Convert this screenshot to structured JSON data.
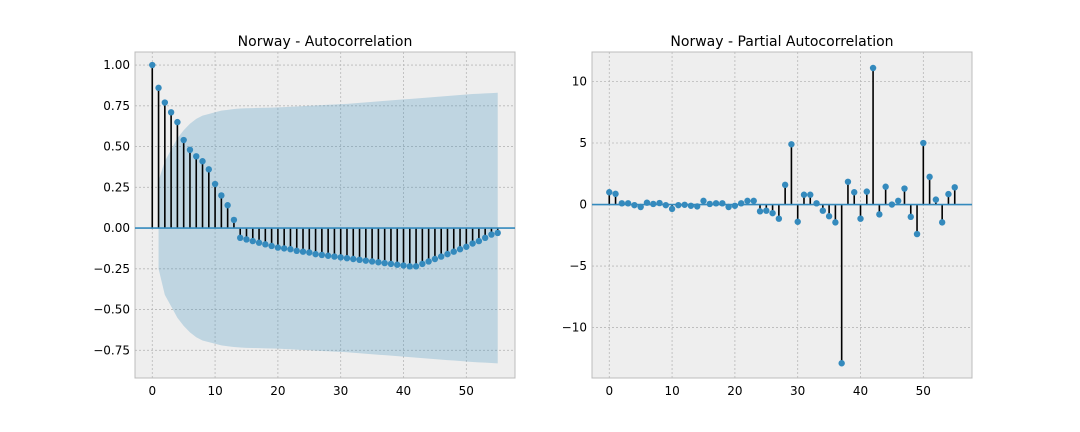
{
  "chart_data": [
    {
      "type": "stem",
      "title": "Norway - Autocorrelation",
      "xlim": [
        -2.75,
        57.75
      ],
      "ylim": [
        -0.92,
        1.08
      ],
      "xticks": [
        0,
        10,
        20,
        30,
        40,
        50
      ],
      "xtick_labels": [
        "0",
        "10",
        "20",
        "30",
        "40",
        "50"
      ],
      "yticks": [
        -0.75,
        -0.5,
        -0.25,
        0.0,
        0.25,
        0.5,
        0.75,
        1.0
      ],
      "ytick_labels": [
        "−0.75",
        "−0.50",
        "−0.25",
        "0.00",
        "0.25",
        "0.50",
        "0.75",
        "1.00"
      ],
      "grid": true,
      "lags": [
        0,
        1,
        2,
        3,
        4,
        5,
        6,
        7,
        8,
        9,
        10,
        11,
        12,
        13,
        14,
        15,
        16,
        17,
        18,
        19,
        20,
        21,
        22,
        23,
        24,
        25,
        26,
        27,
        28,
        29,
        30,
        31,
        32,
        33,
        34,
        35,
        36,
        37,
        38,
        39,
        40,
        41,
        42,
        43,
        44,
        45,
        46,
        47,
        48,
        49,
        50,
        51,
        52,
        53,
        54,
        55
      ],
      "values": [
        1.0,
        0.86,
        0.77,
        0.71,
        0.65,
        0.54,
        0.48,
        0.44,
        0.41,
        0.36,
        0.27,
        0.2,
        0.14,
        0.05,
        -0.06,
        -0.07,
        -0.08,
        -0.09,
        -0.1,
        -0.11,
        -0.12,
        -0.125,
        -0.13,
        -0.14,
        -0.145,
        -0.15,
        -0.16,
        -0.165,
        -0.17,
        -0.175,
        -0.18,
        -0.185,
        -0.19,
        -0.195,
        -0.2,
        -0.205,
        -0.21,
        -0.215,
        -0.22,
        -0.225,
        -0.23,
        -0.235,
        -0.235,
        -0.22,
        -0.205,
        -0.19,
        -0.175,
        -0.16,
        -0.145,
        -0.13,
        -0.115,
        -0.095,
        -0.08,
        -0.06,
        -0.04,
        -0.03
      ],
      "confint_upper": [
        null,
        0.29,
        0.41,
        0.48,
        0.55,
        0.6,
        0.64,
        0.67,
        0.69,
        0.7,
        0.71,
        0.72,
        0.725,
        0.73,
        0.733,
        0.735,
        0.736,
        0.737,
        0.738,
        0.739,
        0.74,
        0.742,
        0.744,
        0.746,
        0.748,
        0.75,
        0.752,
        0.754,
        0.756,
        0.758,
        0.76,
        0.762,
        0.765,
        0.768,
        0.771,
        0.774,
        0.777,
        0.78,
        0.783,
        0.786,
        0.789,
        0.792,
        0.795,
        0.798,
        0.801,
        0.804,
        0.807,
        0.81,
        0.813,
        0.816,
        0.819,
        0.822,
        0.824,
        0.826,
        0.828,
        0.83
      ],
      "confint_lower": [
        null,
        -0.25,
        -0.41,
        -0.48,
        -0.55,
        -0.6,
        -0.64,
        -0.67,
        -0.69,
        -0.7,
        -0.71,
        -0.72,
        -0.725,
        -0.73,
        -0.733,
        -0.735,
        -0.736,
        -0.737,
        -0.738,
        -0.739,
        -0.74,
        -0.742,
        -0.744,
        -0.746,
        -0.748,
        -0.75,
        -0.752,
        -0.754,
        -0.756,
        -0.758,
        -0.76,
        -0.762,
        -0.765,
        -0.768,
        -0.771,
        -0.774,
        -0.777,
        -0.78,
        -0.783,
        -0.786,
        -0.789,
        -0.792,
        -0.795,
        -0.798,
        -0.801,
        -0.804,
        -0.807,
        -0.81,
        -0.813,
        -0.816,
        -0.819,
        -0.822,
        -0.824,
        -0.826,
        -0.828,
        -0.83
      ]
    },
    {
      "type": "stem",
      "title": "Norway - Partial Autocorrelation",
      "xlim": [
        -2.75,
        57.75
      ],
      "ylim": [
        -14.1,
        12.4
      ],
      "xticks": [
        0,
        10,
        20,
        30,
        40,
        50
      ],
      "xtick_labels": [
        "0",
        "10",
        "20",
        "30",
        "40",
        "50"
      ],
      "yticks": [
        -10,
        -5,
        0,
        5,
        10
      ],
      "ytick_labels": [
        "−10",
        "−5",
        "0",
        "5",
        "10"
      ],
      "grid": true,
      "lags": [
        0,
        1,
        2,
        3,
        4,
        5,
        6,
        7,
        8,
        9,
        10,
        11,
        12,
        13,
        14,
        15,
        16,
        17,
        18,
        19,
        20,
        21,
        22,
        23,
        24,
        25,
        26,
        27,
        28,
        29,
        30,
        31,
        32,
        33,
        34,
        35,
        36,
        37,
        38,
        39,
        40,
        41,
        42,
        43,
        44,
        45,
        46,
        47,
        48,
        49,
        50,
        51,
        52,
        53,
        54,
        55
      ],
      "values": [
        1.0,
        0.87,
        0.1,
        0.1,
        -0.05,
        -0.2,
        0.15,
        0.05,
        0.12,
        -0.05,
        -0.35,
        -0.05,
        -0.02,
        -0.1,
        -0.15,
        0.3,
        0.05,
        0.1,
        0.1,
        -0.2,
        -0.1,
        0.1,
        0.3,
        0.3,
        -0.55,
        -0.5,
        -0.7,
        -1.15,
        1.6,
        4.9,
        -1.4,
        0.8,
        0.8,
        0.1,
        -0.5,
        -0.95,
        -1.45,
        -12.9,
        1.85,
        1.0,
        -1.15,
        1.05,
        11.1,
        -0.8,
        1.45,
        0.0,
        0.3,
        1.3,
        -1.0,
        -2.4,
        5.0,
        2.25,
        0.4,
        -1.45,
        0.85,
        1.4
      ]
    }
  ]
}
